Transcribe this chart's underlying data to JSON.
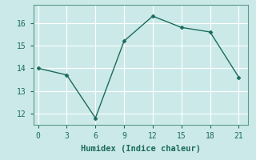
{
  "x": [
    0,
    3,
    6,
    9,
    12,
    15,
    18,
    21
  ],
  "y": [
    14.0,
    13.7,
    11.8,
    15.2,
    16.3,
    15.8,
    15.6,
    13.6
  ],
  "xlabel": "Humidex (Indice chaleur)",
  "xlim": [
    -0.5,
    22
  ],
  "ylim": [
    11.5,
    16.8
  ],
  "xticks": [
    0,
    3,
    6,
    9,
    12,
    15,
    18,
    21
  ],
  "yticks": [
    12,
    13,
    14,
    15,
    16
  ],
  "line_color": "#1a6b5a",
  "marker": "D",
  "marker_size": 2.5,
  "bg_color": "#cce9e9",
  "grid_color": "#ffffff",
  "spine_color": "#5a9a8a",
  "tick_color": "#1a6b5a",
  "label_fontsize": 7,
  "xlabel_fontsize": 7.5
}
